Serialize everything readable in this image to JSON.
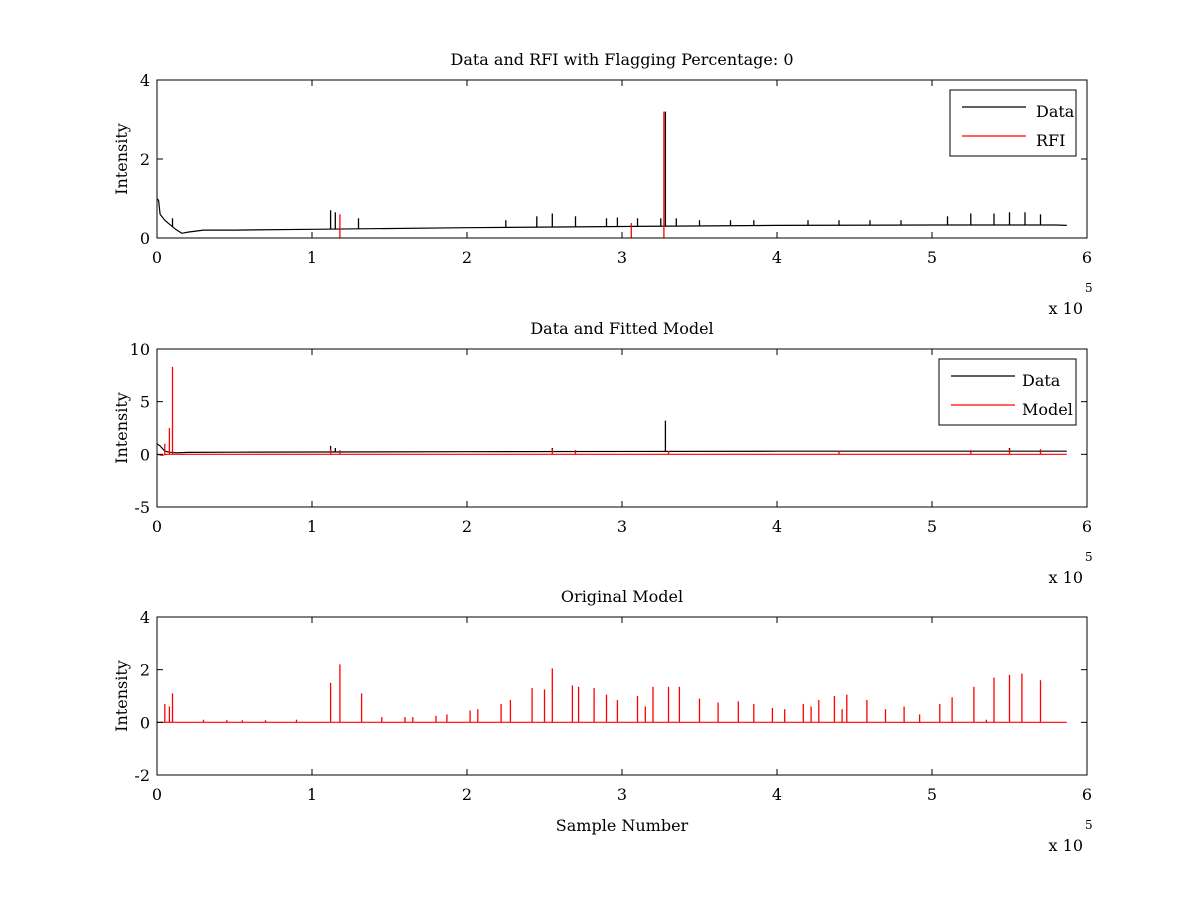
{
  "figure": {
    "background": "#ffffff"
  },
  "chart_data": [
    {
      "type": "line",
      "title": "Data and RFI with Flagging Percentage: 0",
      "xlabel": "",
      "ylabel": "Intensity",
      "xlim": [
        0,
        6
      ],
      "ylim": [
        0,
        4
      ],
      "xticks": [
        "0",
        "1",
        "2",
        "3",
        "4",
        "5",
        "6"
      ],
      "yticks": [
        "0",
        "2",
        "4"
      ],
      "x_exponent_label": "x 10",
      "x_exponent": "5",
      "legend_position": "top-right",
      "series": [
        {
          "name": "Data",
          "color": "#000000",
          "baseline": [
            [
              0,
              1.0
            ],
            [
              0.01,
              0.95
            ],
            [
              0.02,
              0.6
            ],
            [
              0.05,
              0.45
            ],
            [
              0.08,
              0.35
            ],
            [
              0.12,
              0.22
            ],
            [
              0.16,
              0.12
            ],
            [
              0.2,
              0.15
            ],
            [
              0.3,
              0.2
            ],
            [
              0.5,
              0.2
            ],
            [
              1.0,
              0.22
            ],
            [
              2.0,
              0.26
            ],
            [
              3.0,
              0.29
            ],
            [
              4.0,
              0.32
            ],
            [
              5.0,
              0.33
            ],
            [
              5.8,
              0.33
            ],
            [
              5.87,
              0.32
            ]
          ],
          "spikes": [
            [
              0.1,
              0.5
            ],
            [
              1.12,
              0.7
            ],
            [
              1.15,
              0.65
            ],
            [
              1.3,
              0.5
            ],
            [
              2.25,
              0.45
            ],
            [
              2.45,
              0.55
            ],
            [
              2.55,
              0.62
            ],
            [
              2.7,
              0.55
            ],
            [
              2.9,
              0.5
            ],
            [
              2.97,
              0.52
            ],
            [
              3.1,
              0.5
            ],
            [
              3.25,
              0.5
            ],
            [
              3.28,
              3.2
            ],
            [
              3.35,
              0.5
            ],
            [
              3.5,
              0.45
            ],
            [
              3.7,
              0.45
            ],
            [
              3.85,
              0.45
            ],
            [
              4.2,
              0.45
            ],
            [
              4.4,
              0.45
            ],
            [
              4.6,
              0.45
            ],
            [
              4.8,
              0.45
            ],
            [
              5.1,
              0.55
            ],
            [
              5.25,
              0.62
            ],
            [
              5.4,
              0.62
            ],
            [
              5.5,
              0.65
            ],
            [
              5.6,
              0.65
            ],
            [
              5.7,
              0.6
            ]
          ]
        },
        {
          "name": "RFI",
          "color": "#ff0000",
          "spikes": [
            [
              1.18,
              0.6
            ],
            [
              3.06,
              0.38
            ],
            [
              3.27,
              3.2
            ]
          ]
        }
      ]
    },
    {
      "type": "line",
      "title": "Data and Fitted Model",
      "xlabel": "",
      "ylabel": "Intensity",
      "xlim": [
        0,
        6
      ],
      "ylim": [
        -5,
        10
      ],
      "xticks": [
        "0",
        "1",
        "2",
        "3",
        "4",
        "5",
        "6"
      ],
      "yticks": [
        "-5",
        "0",
        "5",
        "10"
      ],
      "x_exponent_label": "x 10",
      "x_exponent": "5",
      "legend_position": "top-right",
      "series": [
        {
          "name": "Data",
          "color": "#000000",
          "baseline": [
            [
              0,
              1.0
            ],
            [
              0.02,
              0.8
            ],
            [
              0.05,
              0.3
            ],
            [
              0.08,
              0.2
            ],
            [
              0.12,
              0.15
            ],
            [
              0.2,
              0.18
            ],
            [
              0.5,
              0.2
            ],
            [
              2.0,
              0.25
            ],
            [
              4.0,
              0.3
            ],
            [
              5.87,
              0.3
            ]
          ],
          "spikes": [
            [
              1.12,
              0.8
            ],
            [
              1.15,
              0.6
            ],
            [
              3.28,
              3.2
            ],
            [
              2.55,
              0.6
            ],
            [
              5.5,
              0.6
            ]
          ]
        },
        {
          "name": "Model",
          "color": "#ff0000",
          "baseline": [
            [
              0,
              0.0
            ],
            [
              0.03,
              -0.1
            ],
            [
              0.06,
              0.0
            ],
            [
              5.87,
              0.0
            ]
          ],
          "spikes": [
            [
              0.05,
              1.0
            ],
            [
              0.08,
              2.5
            ],
            [
              0.1,
              8.3
            ],
            [
              1.12,
              0.5
            ],
            [
              1.18,
              0.4
            ],
            [
              2.55,
              0.5
            ],
            [
              2.7,
              0.4
            ],
            [
              3.3,
              0.3
            ],
            [
              4.4,
              0.3
            ],
            [
              5.25,
              0.4
            ],
            [
              5.5,
              0.5
            ],
            [
              5.7,
              0.5
            ]
          ]
        }
      ]
    },
    {
      "type": "line",
      "title": "Original Model",
      "xlabel": "Sample Number",
      "ylabel": "Intensity",
      "xlim": [
        0,
        6
      ],
      "ylim": [
        -2,
        4
      ],
      "xticks": [
        "0",
        "1",
        "2",
        "3",
        "4",
        "5",
        "6"
      ],
      "yticks": [
        "-2",
        "0",
        "2",
        "4"
      ],
      "x_exponent_label": "x 10",
      "x_exponent": "5",
      "series": [
        {
          "name": "",
          "color": "#ff0000",
          "baseline": [
            [
              0,
              0
            ],
            [
              5.87,
              0
            ]
          ],
          "spikes": [
            [
              0.05,
              0.7
            ],
            [
              0.08,
              0.6
            ],
            [
              0.1,
              1.1
            ],
            [
              0.3,
              0.1
            ],
            [
              0.45,
              0.08
            ],
            [
              0.55,
              0.08
            ],
            [
              0.7,
              0.08
            ],
            [
              0.9,
              0.1
            ],
            [
              1.12,
              1.5
            ],
            [
              1.18,
              2.2
            ],
            [
              1.32,
              1.1
            ],
            [
              1.45,
              0.2
            ],
            [
              1.6,
              0.2
            ],
            [
              1.65,
              0.2
            ],
            [
              1.8,
              0.25
            ],
            [
              1.87,
              0.3
            ],
            [
              2.02,
              0.45
            ],
            [
              2.07,
              0.5
            ],
            [
              2.22,
              0.7
            ],
            [
              2.28,
              0.85
            ],
            [
              2.42,
              1.3
            ],
            [
              2.5,
              1.25
            ],
            [
              2.55,
              2.05
            ],
            [
              2.68,
              1.4
            ],
            [
              2.72,
              1.35
            ],
            [
              2.82,
              1.3
            ],
            [
              2.9,
              1.05
            ],
            [
              2.97,
              0.85
            ],
            [
              3.1,
              1.0
            ],
            [
              3.15,
              0.6
            ],
            [
              3.2,
              1.35
            ],
            [
              3.3,
              1.35
            ],
            [
              3.37,
              1.35
            ],
            [
              3.5,
              0.9
            ],
            [
              3.62,
              0.75
            ],
            [
              3.75,
              0.8
            ],
            [
              3.85,
              0.7
            ],
            [
              3.97,
              0.55
            ],
            [
              4.05,
              0.5
            ],
            [
              4.17,
              0.7
            ],
            [
              4.22,
              0.6
            ],
            [
              4.27,
              0.85
            ],
            [
              4.37,
              1.0
            ],
            [
              4.42,
              0.5
            ],
            [
              4.45,
              1.05
            ],
            [
              4.58,
              0.85
            ],
            [
              4.7,
              0.5
            ],
            [
              4.82,
              0.6
            ],
            [
              4.92,
              0.3
            ],
            [
              5.05,
              0.7
            ],
            [
              5.13,
              0.95
            ],
            [
              5.27,
              1.35
            ],
            [
              5.35,
              0.1
            ],
            [
              5.4,
              1.7
            ],
            [
              5.5,
              1.8
            ],
            [
              5.58,
              1.85
            ],
            [
              5.7,
              1.6
            ]
          ]
        }
      ]
    }
  ]
}
